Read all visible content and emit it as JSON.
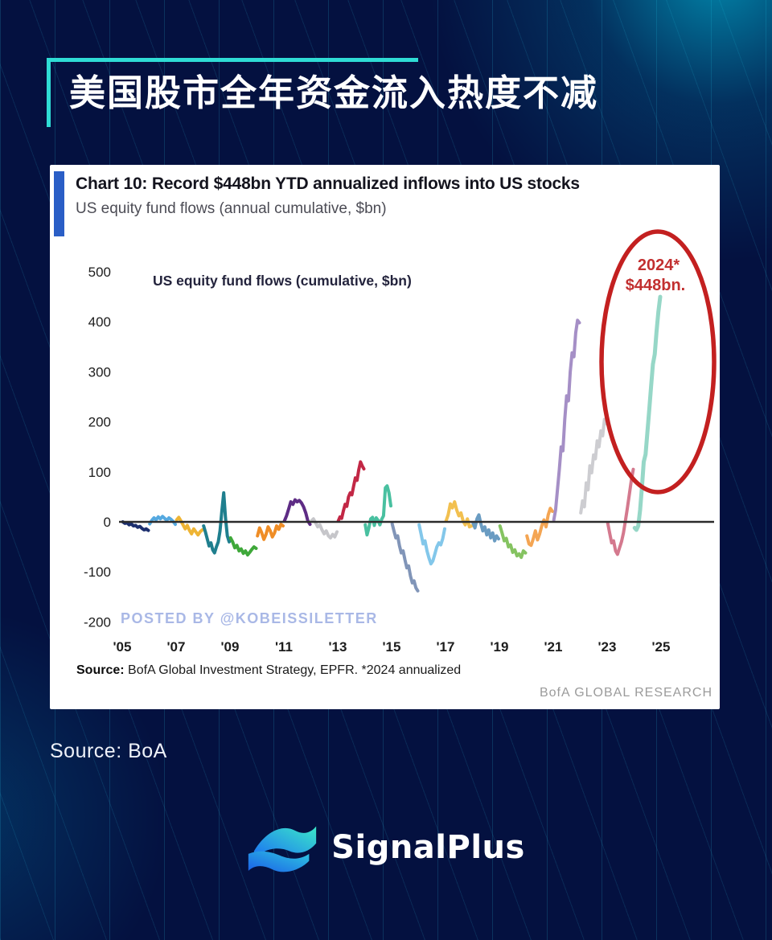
{
  "page": {
    "bg_color": "#041140",
    "accent_color": "#2fdcd5"
  },
  "header": {
    "title": "美国股市全年资金流入热度不减"
  },
  "chart_card": {
    "accent_bar_color": "#2a5ec6",
    "title": "Chart 10: Record $448bn YTD annualized inflows into US stocks",
    "subtitle": "US equity fund flows (annual cumulative, $bn)",
    "inner_label": "US equity fund flows (cumulative, $bn)",
    "watermark": "POSTED BY @KOBEISSILETTER",
    "annotation": {
      "line1": "2024*",
      "line2": "$448bn.",
      "text_color": "#c22f2f",
      "circle_color": "#c32020"
    },
    "source_bold": "Source:",
    "source_rest": " BofA Global Investment Strategy, EPFR. *2024 annualized",
    "brand": "BofA GLOBAL RESEARCH"
  },
  "chart_data": {
    "type": "line",
    "title": "US equity fund flows (cumulative, $bn)",
    "xlabel": "",
    "ylabel": "$bn",
    "ylim": [
      -200,
      500
    ],
    "grid": false,
    "yticks": [
      500,
      400,
      300,
      200,
      100,
      0,
      -100,
      -200
    ],
    "xticks": [
      "'05",
      "'07",
      "'09",
      "'11",
      "'13",
      "'15",
      "'17",
      "'19",
      "'21",
      "'23",
      "'25"
    ],
    "annotation": "2024* $448bn. (circled, annualized)",
    "series": [
      {
        "name": "2005",
        "color": "#1c2f6e",
        "values": [
          0,
          -3,
          -2,
          -6,
          -4,
          -8,
          -7,
          -11,
          -9,
          -13,
          -16,
          -14,
          -17
        ]
      },
      {
        "name": "2006",
        "color": "#55a9e0",
        "values": [
          -4,
          3,
          8,
          4,
          10,
          6,
          11,
          7,
          3,
          8,
          5,
          1,
          -5
        ]
      },
      {
        "name": "2007",
        "color": "#eeb434",
        "values": [
          4,
          9,
          2,
          -6,
          -14,
          -7,
          -17,
          -24,
          -14,
          -20,
          -26,
          -20,
          -16
        ]
      },
      {
        "name": "2008",
        "color": "#1f7f8e",
        "values": [
          -8,
          -20,
          -34,
          -48,
          -42,
          -56,
          -62,
          -50,
          -40,
          -18,
          22,
          58,
          8,
          -28,
          -40
        ]
      },
      {
        "name": "2009",
        "color": "#3fa83a",
        "values": [
          -32,
          -40,
          -52,
          -47,
          -58,
          -54,
          -63,
          -58,
          -66,
          -61,
          -55,
          -50,
          -53
        ]
      },
      {
        "name": "2010",
        "color": "#ef8d26",
        "values": [
          -28,
          -12,
          -22,
          -35,
          -25,
          -10,
          -18,
          -30,
          -22,
          -8,
          -15,
          -5,
          -8
        ]
      },
      {
        "name": "2011",
        "color": "#5e2c85",
        "values": [
          2,
          12,
          26,
          40,
          35,
          44,
          40,
          43,
          38,
          30,
          18,
          2,
          -5
        ]
      },
      {
        "name": "2012",
        "color": "#c6c6ca",
        "values": [
          2,
          6,
          -2,
          -10,
          -6,
          -16,
          -24,
          -18,
          -28,
          -32,
          -25,
          -30,
          -20
        ]
      },
      {
        "name": "2013",
        "color": "#c22745",
        "values": [
          2,
          10,
          7,
          22,
          35,
          31,
          50,
          58,
          54,
          72,
          88,
          83,
          104,
          120,
          112,
          106
        ]
      },
      {
        "name": "2014",
        "color": "#49c0a0",
        "values": [
          -6,
          -26,
          -12,
          6,
          9,
          -7,
          8,
          3,
          -6,
          5,
          12,
          68,
          72,
          58,
          32
        ]
      },
      {
        "name": "2015",
        "color": "#8195b8",
        "values": [
          -4,
          -18,
          -32,
          -28,
          -48,
          -62,
          -58,
          -76,
          -92,
          -88,
          -108,
          -122,
          -118,
          -132,
          -138
        ]
      },
      {
        "name": "2016",
        "color": "#83c7ea",
        "values": [
          -6,
          -24,
          -44,
          -38,
          -58,
          -72,
          -84,
          -78,
          -64,
          -50,
          -42,
          -46,
          -34,
          -14
        ]
      },
      {
        "name": "2017",
        "color": "#f2c050",
        "values": [
          2,
          14,
          36,
          28,
          40,
          24,
          12,
          18,
          2,
          -6,
          6,
          -10,
          -8
        ]
      },
      {
        "name": "2018",
        "color": "#6a9cc2",
        "values": [
          -2,
          -12,
          6,
          14,
          -4,
          -18,
          -10,
          -26,
          -16,
          -32,
          -22,
          -38,
          -28,
          -34
        ]
      },
      {
        "name": "2019",
        "color": "#85c361",
        "values": [
          -8,
          -22,
          -38,
          -33,
          -50,
          -46,
          -61,
          -56,
          -68,
          -64,
          -71,
          -58,
          -62
        ]
      },
      {
        "name": "2020",
        "color": "#f4a553",
        "values": [
          -28,
          -44,
          -47,
          -34,
          -18,
          -36,
          -24,
          -8,
          4,
          -10,
          14,
          27,
          21
        ]
      },
      {
        "name": "2021",
        "color": "#a58fc6",
        "values": [
          4,
          24,
          64,
          104,
          150,
          142,
          205,
          252,
          242,
          300,
          338,
          330,
          378,
          403,
          398
        ]
      },
      {
        "name": "2022",
        "color": "#cdcdd1",
        "values": [
          18,
          42,
          30,
          78,
          64,
          112,
          98,
          134,
          126,
          162,
          150,
          182,
          172,
          205,
          196
        ]
      },
      {
        "name": "2023",
        "color": "#d4798e",
        "values": [
          -2,
          -22,
          -42,
          -38,
          -58,
          -65,
          -52,
          -40,
          -22,
          2,
          28,
          55,
          82,
          105
        ]
      },
      {
        "name": "2024",
        "color": "#96d7c7",
        "width": 5,
        "values": [
          -12,
          -16,
          -8,
          24,
          70,
          120,
          135,
          180,
          225,
          270,
          315,
          335,
          380,
          420,
          450
        ]
      }
    ]
  },
  "footer": {
    "source": "Source: BoA",
    "brand": "SignalPlus"
  }
}
